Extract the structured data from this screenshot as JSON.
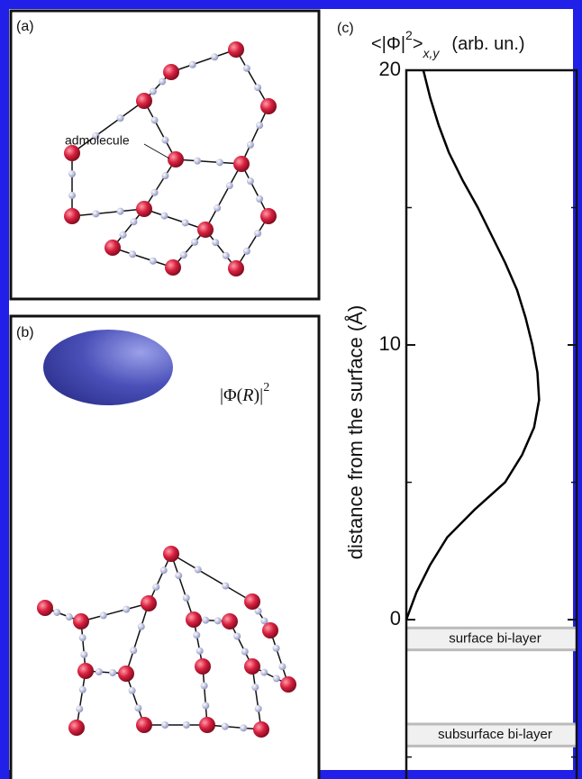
{
  "panel_a": {
    "label": "(a)",
    "annotation": "admolecule"
  },
  "panel_b": {
    "label": "(b)",
    "annotation_main": "|Φ(",
    "annotation_var": "R",
    "annotation_close": ")|",
    "annotation_sup": "2"
  },
  "chart_data": {
    "type": "line",
    "panel_label": "(c)",
    "title_main": "<|Φ|",
    "title_sup": "2",
    "title_close": ">",
    "title_sub": "x,y",
    "title_unit": "(arb. un.)",
    "ylabel": "distance from the surface (Å)",
    "y": [
      0,
      1,
      2,
      3,
      4,
      5,
      6,
      7,
      8,
      9,
      10,
      11,
      12,
      13,
      14,
      15,
      16,
      17,
      18,
      19,
      20
    ],
    "values": [
      0,
      0.06,
      0.14,
      0.24,
      0.4,
      0.58,
      0.68,
      0.75,
      0.78,
      0.77,
      0.74,
      0.7,
      0.65,
      0.58,
      0.5,
      0.42,
      0.33,
      0.25,
      0.19,
      0.14,
      0.1
    ],
    "color": "#000000",
    "xlim": [
      0,
      1
    ],
    "ylim": [
      -5.8,
      20
    ],
    "yticks": [
      0,
      10,
      20
    ],
    "minor_yticks": [
      -5,
      5,
      15
    ],
    "bands": [
      {
        "label": "surface bi-layer",
        "range": [
          -0.3,
          -1.1
        ]
      },
      {
        "label": "subsurface bi-layer",
        "range": [
          -3.8,
          -4.6
        ]
      }
    ]
  }
}
